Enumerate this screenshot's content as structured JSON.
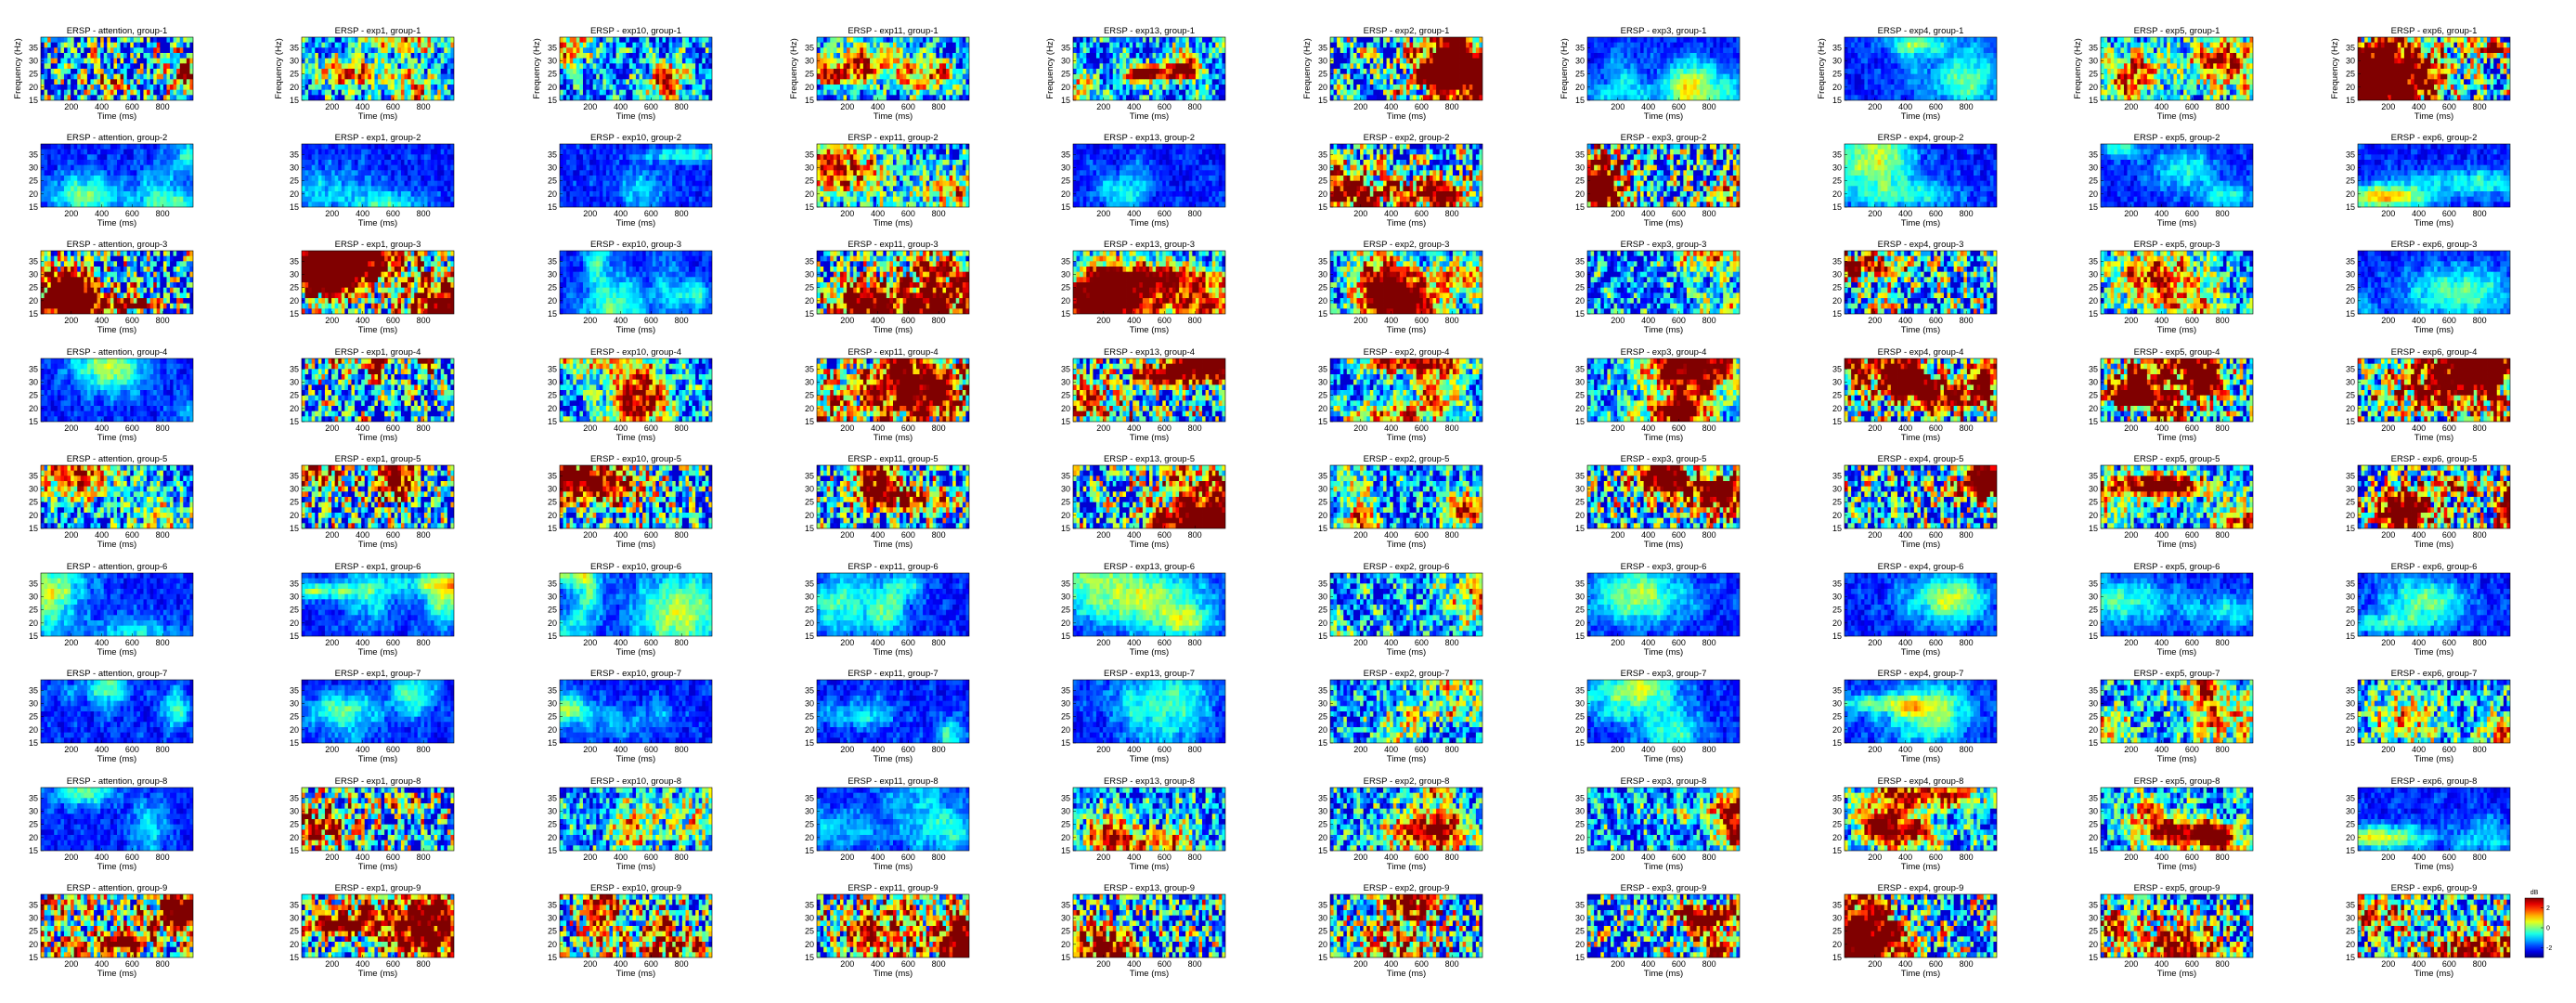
{
  "chart_data": {
    "type": "heatmap",
    "colormap": "jet",
    "grid_rows": 9,
    "grid_cols": 10,
    "title_prefix": "ERSP - ",
    "conditions": [
      "attention",
      "exp1",
      "exp10",
      "exp11",
      "exp13",
      "exp2",
      "exp3",
      "exp4",
      "exp5",
      "exp6"
    ],
    "groups": [
      "group-1",
      "group-2",
      "group-3",
      "group-4",
      "group-5",
      "group-6",
      "group-7",
      "group-8",
      "group-9"
    ],
    "xlabel": "Time (ms)",
    "ylabel": "Frequency (Hz)",
    "xticks": [
      "200",
      "400",
      "600",
      "800"
    ],
    "yticks": [
      "15",
      "20",
      "25",
      "30",
      "35"
    ],
    "xlim": [
      0,
      1000
    ],
    "ylim": [
      15,
      39
    ],
    "colorbar": {
      "unit": "dB",
      "ticks": [
        "2",
        "0",
        "-2"
      ],
      "range": [
        -3,
        3
      ]
    },
    "titles": [
      "ERSP - attention, group-1",
      "ERSP - exp1, group-1",
      "ERSP - exp10, group-1",
      "ERSP - exp11, group-1",
      "ERSP - exp13, group-1",
      "ERSP - exp2, group-1",
      "ERSP - exp3, group-1",
      "ERSP - exp4, group-1",
      "ERSP - exp5, group-1",
      "ERSP - exp6, group-1",
      "ERSP - attention, group-2",
      "ERSP - exp1, group-2",
      "ERSP - exp10, group-2",
      "ERSP - exp11, group-2",
      "ERSP - exp13, group-2",
      "ERSP - exp2, group-2",
      "ERSP - exp3, group-2",
      "ERSP - exp4, group-2",
      "ERSP - exp5, group-2",
      "ERSP - exp6, group-2",
      "ERSP - attention, group-3",
      "ERSP - exp1, group-3",
      "ERSP - exp10, group-3",
      "ERSP - exp11, group-3",
      "ERSP - exp13, group-3",
      "ERSP - exp2, group-3",
      "ERSP - exp3, group-3",
      "ERSP - exp4, group-3",
      "ERSP - exp5, group-3",
      "ERSP - exp6, group-3",
      "ERSP - attention, group-4",
      "ERSP - exp1, group-4",
      "ERSP - exp10, group-4",
      "ERSP - exp11, group-4",
      "ERSP - exp13, group-4",
      "ERSP - exp2, group-4",
      "ERSP - exp3, group-4",
      "ERSP - exp4, group-4",
      "ERSP - exp5, group-4",
      "ERSP - exp6, group-4",
      "ERSP - attention, group-5",
      "ERSP - exp1, group-5",
      "ERSP - exp10, group-5",
      "ERSP - exp11, group-5",
      "ERSP - exp13, group-5",
      "ERSP - exp2, group-5",
      "ERSP - exp3, group-5",
      "ERSP - exp4, group-5",
      "ERSP - exp5, group-5",
      "ERSP - exp6, group-5",
      "ERSP - attention, group-6",
      "ERSP - exp1, group-6",
      "ERSP - exp10, group-6",
      "ERSP - exp11, group-6",
      "ERSP - exp13, group-6",
      "ERSP - exp2, group-6",
      "ERSP - exp3, group-6",
      "ERSP - exp4, group-6",
      "ERSP - exp5, group-6",
      "ERSP - exp6, group-6",
      "ERSP - attention, group-7",
      "ERSP - exp1, group-7",
      "ERSP - exp10, group-7",
      "ERSP - exp11, group-7",
      "ERSP - exp13, group-7",
      "ERSP - exp2, group-7",
      "ERSP - exp3, group-7",
      "ERSP - exp4, group-7",
      "ERSP - exp5, group-7",
      "ERSP - exp6, group-7",
      "ERSP - attention, group-8",
      "ERSP - exp1, group-8",
      "ERSP - exp10, group-8",
      "ERSP - exp11, group-8",
      "ERSP - exp13, group-8",
      "ERSP - exp2, group-8",
      "ERSP - exp3, group-8",
      "ERSP - exp4, group-8",
      "ERSP - exp5, group-8",
      "ERSP - exp6, group-8",
      "ERSP - attention, group-9",
      "ERSP - exp1, group-9",
      "ERSP - exp10, group-9",
      "ERSP - exp11, group-9",
      "ERSP - exp13, group-9",
      "ERSP - exp2, group-9",
      "ERSP - exp3, group-9",
      "ERSP - exp4, group-9",
      "ERSP - exp5, group-9",
      "ERSP - exp6, group-9"
    ],
    "panel_density": [
      "high",
      "mid",
      "mid",
      "mid",
      "mid",
      "high",
      "low",
      "low",
      "mid",
      "high",
      "low",
      "low",
      "low",
      "mid",
      "low",
      "high",
      "high",
      "low",
      "low",
      "low",
      "high",
      "high",
      "low",
      "high",
      "mid",
      "mid",
      "mid",
      "high",
      "mid",
      "low",
      "low",
      "high",
      "mid",
      "high",
      "high",
      "mid",
      "mid",
      "high",
      "high",
      "high",
      "mid",
      "high",
      "high",
      "high",
      "high",
      "mid",
      "high",
      "high",
      "mid",
      "high",
      "low",
      "low",
      "low",
      "low",
      "low",
      "mid",
      "low",
      "low",
      "low",
      "low",
      "low",
      "low",
      "low",
      "low",
      "low",
      "mid",
      "low",
      "low",
      "mid",
      "mid",
      "low",
      "high",
      "mid",
      "low",
      "mid",
      "mid",
      "mid",
      "mid",
      "mid",
      "low",
      "high",
      "high",
      "high",
      "high",
      "high",
      "high",
      "high",
      "high",
      "high",
      "high"
    ]
  }
}
